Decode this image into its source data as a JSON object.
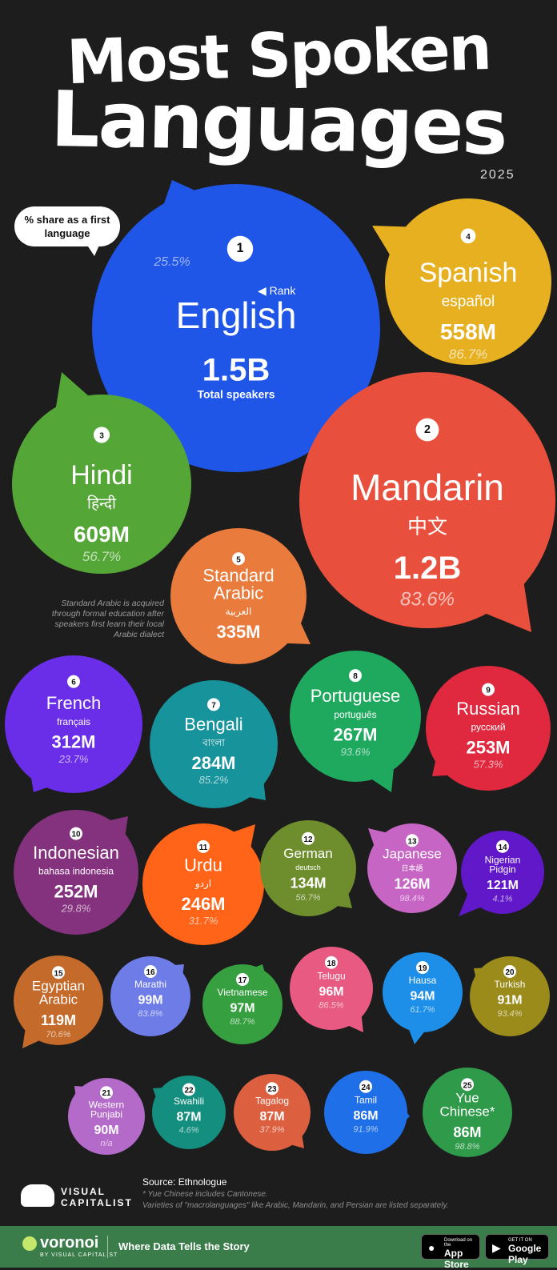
{
  "title": {
    "line1": "Most Spoken",
    "line2": "Languages",
    "year": "2025"
  },
  "legend": {
    "share_callout": "% share as a first language",
    "rank_hint": "Rank",
    "total_hint": "Total speakers"
  },
  "arabic_note": "Standard Arabic is acquired through formal education after speakers first learn their local Arabic dialect",
  "source": "Source: Ethnologue",
  "footnotes": [
    "* Yue Chinese includes Cantonese.",
    "Varieties of \"macrolanguages\" like Arabic, Mandarin, and Persian are listed separately."
  ],
  "branding": {
    "vc_line1": "VISUAL",
    "vc_line2": "CAPITALIST",
    "voronoi": "voronoi",
    "voronoi_sub": "BY VISUAL CAPITALIST",
    "tagline": "Where Data Tells the Story",
    "appstore_small": "Download on the",
    "appstore_big": "App Store",
    "googleplay_small": "GET IT ON",
    "googleplay_big": "Google Play"
  },
  "colors": {
    "background": "#1d1d1d",
    "english": "#2056e8",
    "mandarin": "#e8503d",
    "hindi": "#54a637",
    "spanish": "#e6b020",
    "arabic": "#e97b3c",
    "french": "#6b2ee8",
    "bengali": "#17939c",
    "portuguese": "#1fa95f",
    "russian": "#e0283e",
    "indonesian": "#84327d",
    "urdu": "#ff6418",
    "german": "#6e8e2e",
    "japanese": "#c765c5",
    "nigerian_pidgin": "#6018c8",
    "egyptian_arabic": "#c46a2a",
    "marathi": "#6e7ce8",
    "vietnamese": "#36a040",
    "telugu": "#e85a82",
    "hausa": "#1e8fe8",
    "turkish": "#9a8b1a",
    "western_punjabi": "#b36ac8",
    "swahili": "#148e7e",
    "tagalog": "#dc6040",
    "tamil": "#1f6fe8",
    "yue_chinese": "#2f9a4a"
  },
  "chart_data": {
    "type": "bubble",
    "title": "Most Spoken Languages 2025",
    "size_measure": "Total speakers",
    "share_measure": "% share as a first language",
    "languages": [
      {
        "rank": 1,
        "name": "English",
        "native": "",
        "speakers_label": "1.5B",
        "speakers_millions": 1500,
        "first_language_share": "25.5%",
        "first_language_pct": 25.5
      },
      {
        "rank": 2,
        "name": "Mandarin",
        "native": "中文",
        "speakers_label": "1.2B",
        "speakers_millions": 1200,
        "first_language_share": "83.6%",
        "first_language_pct": 83.6
      },
      {
        "rank": 3,
        "name": "Hindi",
        "native": "हिन्दी",
        "speakers_label": "609M",
        "speakers_millions": 609,
        "first_language_share": "56.7%",
        "first_language_pct": 56.7
      },
      {
        "rank": 4,
        "name": "Spanish",
        "native": "español",
        "speakers_label": "558M",
        "speakers_millions": 558,
        "first_language_share": "86.7%",
        "first_language_pct": 86.7
      },
      {
        "rank": 5,
        "name": "Standard Arabic",
        "native": "العربية",
        "speakers_label": "335M",
        "speakers_millions": 335,
        "first_language_share": "",
        "first_language_pct": null
      },
      {
        "rank": 6,
        "name": "French",
        "native": "français",
        "speakers_label": "312M",
        "speakers_millions": 312,
        "first_language_share": "23.7%",
        "first_language_pct": 23.7
      },
      {
        "rank": 7,
        "name": "Bengali",
        "native": "বাংলা",
        "speakers_label": "284M",
        "speakers_millions": 284,
        "first_language_share": "85.2%",
        "first_language_pct": 85.2
      },
      {
        "rank": 8,
        "name": "Portuguese",
        "native": "português",
        "speakers_label": "267M",
        "speakers_millions": 267,
        "first_language_share": "93.6%",
        "first_language_pct": 93.6
      },
      {
        "rank": 9,
        "name": "Russian",
        "native": "русский",
        "speakers_label": "253M",
        "speakers_millions": 253,
        "first_language_share": "57.3%",
        "first_language_pct": 57.3
      },
      {
        "rank": 10,
        "name": "Indonesian",
        "native": "bahasa indonesia",
        "speakers_label": "252M",
        "speakers_millions": 252,
        "first_language_share": "29.8%",
        "first_language_pct": 29.8
      },
      {
        "rank": 11,
        "name": "Urdu",
        "native": "اردو",
        "speakers_label": "246M",
        "speakers_millions": 246,
        "first_language_share": "31.7%",
        "first_language_pct": 31.7
      },
      {
        "rank": 12,
        "name": "German",
        "native": "deutsch",
        "speakers_label": "134M",
        "speakers_millions": 134,
        "first_language_share": "56.7%",
        "first_language_pct": 56.7
      },
      {
        "rank": 13,
        "name": "Japanese",
        "native": "日本語",
        "speakers_label": "126M",
        "speakers_millions": 126,
        "first_language_share": "98.4%",
        "first_language_pct": 98.4
      },
      {
        "rank": 14,
        "name": "Nigerian Pidgin",
        "native": "",
        "speakers_label": "121M",
        "speakers_millions": 121,
        "first_language_share": "4.1%",
        "first_language_pct": 4.1
      },
      {
        "rank": 15,
        "name": "Egyptian Arabic",
        "native": "",
        "speakers_label": "119M",
        "speakers_millions": 119,
        "first_language_share": "70.6%",
        "first_language_pct": 70.6
      },
      {
        "rank": 16,
        "name": "Marathi",
        "native": "",
        "speakers_label": "99M",
        "speakers_millions": 99,
        "first_language_share": "83.8%",
        "first_language_pct": 83.8
      },
      {
        "rank": 17,
        "name": "Vietnamese",
        "native": "",
        "speakers_label": "97M",
        "speakers_millions": 97,
        "first_language_share": "88.7%",
        "first_language_pct": 88.7
      },
      {
        "rank": 18,
        "name": "Telugu",
        "native": "",
        "speakers_label": "96M",
        "speakers_millions": 96,
        "first_language_share": "86.5%",
        "first_language_pct": 86.5
      },
      {
        "rank": 19,
        "name": "Hausa",
        "native": "",
        "speakers_label": "94M",
        "speakers_millions": 94,
        "first_language_share": "61.7%",
        "first_language_pct": 61.7
      },
      {
        "rank": 20,
        "name": "Turkish",
        "native": "",
        "speakers_label": "91M",
        "speakers_millions": 91,
        "first_language_share": "93.4%",
        "first_language_pct": 93.4
      },
      {
        "rank": 21,
        "name": "Western Punjabi",
        "native": "",
        "speakers_label": "90M",
        "speakers_millions": 90,
        "first_language_share": "n/a",
        "first_language_pct": null
      },
      {
        "rank": 22,
        "name": "Swahili",
        "native": "",
        "speakers_label": "87M",
        "speakers_millions": 87,
        "first_language_share": "4.6%",
        "first_language_pct": 4.6
      },
      {
        "rank": 23,
        "name": "Tagalog",
        "native": "",
        "speakers_label": "87M",
        "speakers_millions": 87,
        "first_language_share": "37.9%",
        "first_language_pct": 37.9
      },
      {
        "rank": 24,
        "name": "Tamil",
        "native": "",
        "speakers_label": "86M",
        "speakers_millions": 86,
        "first_language_share": "91.9%",
        "first_language_pct": 91.9
      },
      {
        "rank": 25,
        "name": "Yue Chinese*",
        "native": "",
        "speakers_label": "86M",
        "speakers_millions": 86,
        "first_language_share": "98.8%",
        "first_language_pct": 98.8
      }
    ]
  }
}
